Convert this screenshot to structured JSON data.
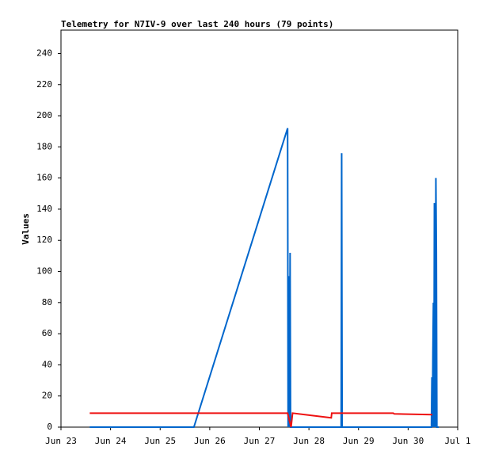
{
  "chart_data": {
    "type": "line",
    "title": "Telemetry for N7IV-9 over last 240 hours (79 points)",
    "y_label": "Values",
    "xlim": [
      23,
      31
    ],
    "xticks": [
      {
        "value": 23,
        "label": "Jun 23"
      },
      {
        "value": 24,
        "label": "Jun 24"
      },
      {
        "value": 25,
        "label": "Jun 25"
      },
      {
        "value": 26,
        "label": "Jun 26"
      },
      {
        "value": 27,
        "label": "Jun 27"
      },
      {
        "value": 28,
        "label": "Jun 28"
      },
      {
        "value": 29,
        "label": "Jun 29"
      },
      {
        "value": 30,
        "label": "Jun 30"
      },
      {
        "value": 31,
        "label": "Jul 1"
      }
    ],
    "ylim": [
      0,
      255
    ],
    "yticks": [
      0,
      20,
      40,
      60,
      80,
      100,
      120,
      140,
      160,
      180,
      200,
      220,
      240
    ],
    "series": [
      {
        "color": "#0066cc",
        "x": [
          23.58,
          25.68,
          27.57,
          27.58,
          27.6,
          27.61,
          27.62,
          27.63,
          28.65,
          28.66,
          28.67,
          30.47,
          30.48,
          30.49,
          30.5,
          30.51,
          30.52,
          30.53,
          30.54,
          30.55,
          30.56,
          30.57,
          30.58,
          30.59,
          30.6,
          30.61,
          30.62
        ],
        "values": [
          0,
          0,
          192,
          0,
          97,
          0,
          112,
          0,
          0,
          176,
          0,
          0,
          32,
          0,
          48,
          80,
          0,
          144,
          112,
          0,
          160,
          112,
          0,
          0,
          0,
          0,
          0
        ]
      },
      {
        "color": "#ee1111",
        "x": [
          23.58,
          27.57,
          27.6,
          27.64,
          27.67,
          28.45,
          28.46,
          29.7,
          29.72,
          30.49
        ],
        "values": [
          9,
          9,
          5,
          0,
          9,
          6,
          9,
          9,
          8.5,
          8
        ]
      }
    ]
  }
}
